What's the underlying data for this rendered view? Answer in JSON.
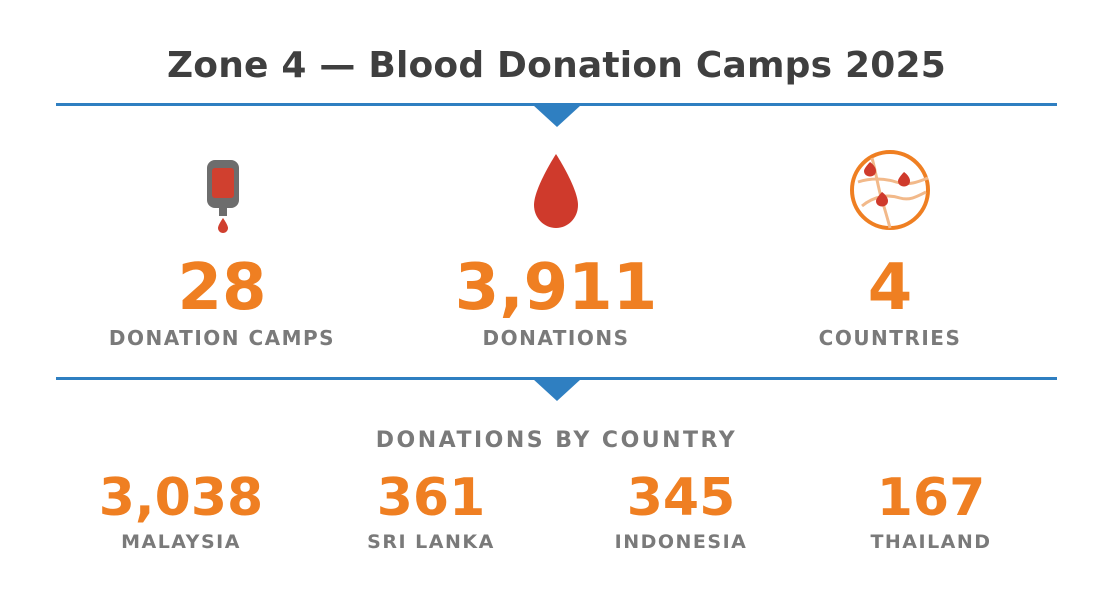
{
  "title": "Zone 4 — Blood Donation Camps 2025",
  "stats": [
    {
      "value": "28",
      "label": "DONATION CAMPS",
      "icon": "blood-bag-icon"
    },
    {
      "value": "3,911",
      "label": "DONATIONS",
      "icon": "blood-drop-icon"
    },
    {
      "value": "4",
      "label": "COUNTRIES",
      "icon": "map-pins-icon"
    }
  ],
  "by_country": {
    "heading": "DONATIONS BY COUNTRY",
    "items": [
      {
        "value": "3,038",
        "label": "MALAYSIA"
      },
      {
        "value": "361",
        "label": "SRI LANKA"
      },
      {
        "value": "345",
        "label": "INDONESIA"
      },
      {
        "value": "167",
        "label": "THAILAND"
      }
    ]
  },
  "colors": {
    "accent_orange": "#ef7f22",
    "divider_blue": "#2f7fc1",
    "blood_red": "#cf3a2c",
    "label_gray": "#7a7a7a",
    "title_dark": "#3f3f3f"
  }
}
